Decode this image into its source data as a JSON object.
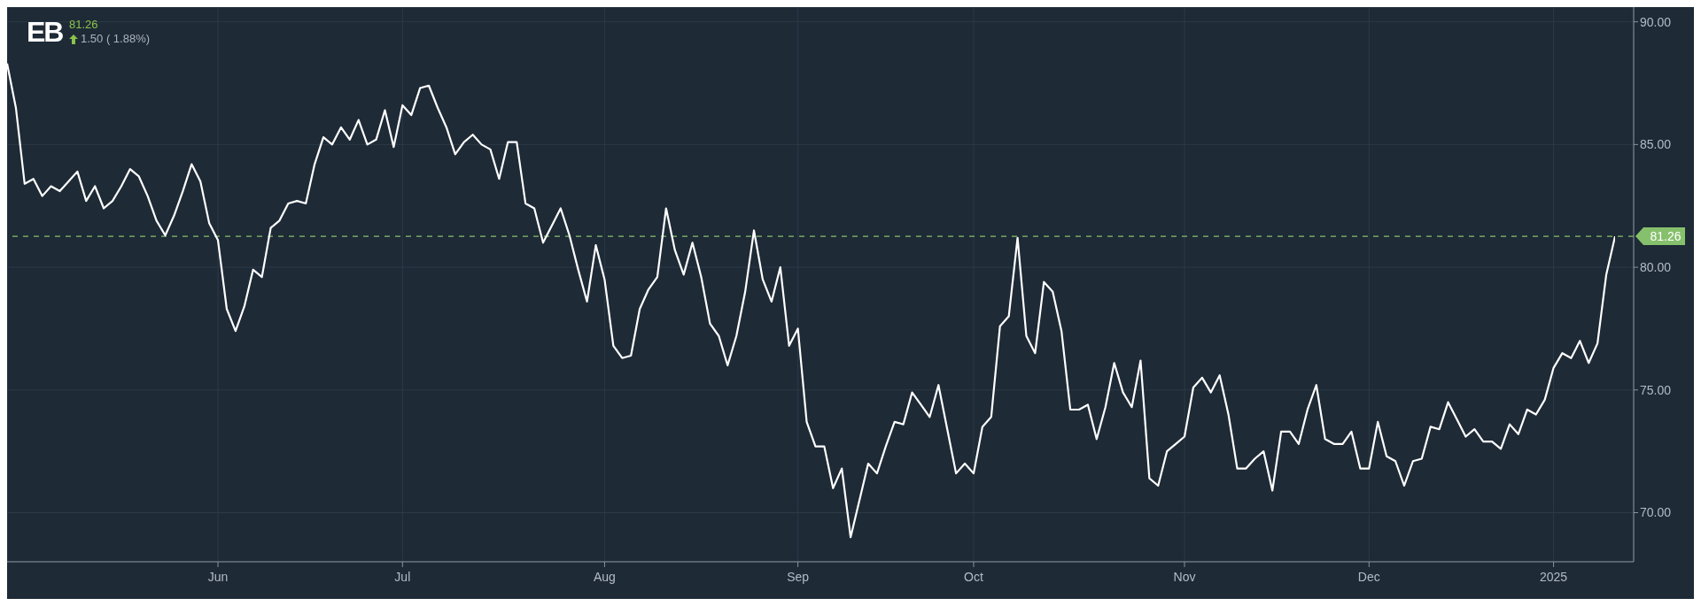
{
  "chart_data": {
    "type": "line",
    "title": "EB",
    "annotations": [
      "81.26",
      "1.50 ( 1.88%)"
    ],
    "categories": [
      null,
      null,
      null,
      null,
      null,
      null,
      null,
      null,
      null,
      null,
      null,
      null,
      null,
      null,
      null,
      null,
      null,
      null,
      null,
      null,
      null,
      null,
      null,
      null,
      "Jun",
      null,
      null,
      null,
      null,
      null,
      null,
      null,
      null,
      null,
      null,
      null,
      null,
      null,
      null,
      null,
      null,
      null,
      null,
      null,
      null,
      "Jul",
      null,
      null,
      null,
      null,
      null,
      null,
      null,
      null,
      null,
      null,
      null,
      null,
      null,
      null,
      null,
      null,
      null,
      null,
      null,
      null,
      null,
      null,
      "Aug",
      null,
      null,
      null,
      null,
      null,
      null,
      null,
      null,
      null,
      null,
      null,
      null,
      null,
      null,
      null,
      null,
      null,
      null,
      null,
      null,
      null,
      "Sep",
      null,
      null,
      null,
      null,
      null,
      null,
      null,
      null,
      null,
      null,
      null,
      null,
      null,
      null,
      null,
      null,
      null,
      null,
      null,
      "Oct",
      null,
      null,
      null,
      null,
      null,
      null,
      null,
      null,
      null,
      null,
      null,
      null,
      null,
      null,
      null,
      null,
      null,
      null,
      null,
      null,
      null,
      null,
      null,
      "Nov",
      null,
      null,
      null,
      null,
      null,
      null,
      null,
      null,
      null,
      null,
      null,
      null,
      null,
      null,
      null,
      null,
      null,
      null,
      null,
      null,
      "Dec",
      null,
      null,
      null,
      null,
      null,
      null,
      null,
      null,
      null,
      null,
      null,
      null,
      null,
      null,
      null,
      null,
      null,
      null,
      null,
      null,
      "2025",
      null,
      null,
      null,
      null,
      null,
      null,
      null
    ],
    "series": [
      {
        "color": "#ffffff",
        "values": [
          88.3,
          86.5,
          83.4,
          83.6,
          82.9,
          83.3,
          83.1,
          83.5,
          83.9,
          82.7,
          83.3,
          82.4,
          82.7,
          83.3,
          84.0,
          83.7,
          82.9,
          81.9,
          81.3,
          82.1,
          83.1,
          84.2,
          83.5,
          81.8,
          81.1,
          78.3,
          77.4,
          78.4,
          79.9,
          79.6,
          81.6,
          81.9,
          82.6,
          82.7,
          82.6,
          84.2,
          85.3,
          85.0,
          85.7,
          85.2,
          86.0,
          85.0,
          85.2,
          86.4,
          84.9,
          86.6,
          86.2,
          87.3,
          87.4,
          86.5,
          85.7,
          84.6,
          85.1,
          85.4,
          85.0,
          84.8,
          83.6,
          85.1,
          85.1,
          82.6,
          82.4,
          81.0,
          81.7,
          82.4,
          81.3,
          79.9,
          78.6,
          80.9,
          79.5,
          76.8,
          76.3,
          76.4,
          78.3,
          79.1,
          79.6,
          82.4,
          80.7,
          79.7,
          81.0,
          79.6,
          77.7,
          77.2,
          76.0,
          77.2,
          79.0,
          81.5,
          79.5,
          78.6,
          80.0,
          76.8,
          77.5,
          73.7,
          72.7,
          72.7,
          71.0,
          71.8,
          69.0,
          70.5,
          72.0,
          71.6,
          72.7,
          73.7,
          73.6,
          74.9,
          74.4,
          73.9,
          75.2,
          73.4,
          71.6,
          72.0,
          71.6,
          73.5,
          73.9,
          77.6,
          78.0,
          81.2,
          77.2,
          76.5,
          79.4,
          79.0,
          77.4,
          74.2,
          74.2,
          74.4,
          73.0,
          74.3,
          76.1,
          74.9,
          74.3,
          76.2,
          71.4,
          71.1,
          72.5,
          72.8,
          73.1,
          75.1,
          75.5,
          74.9,
          75.6,
          74.0,
          71.8,
          71.8,
          72.2,
          72.5,
          70.9,
          73.3,
          73.3,
          72.8,
          74.2,
          75.2,
          73.0,
          72.8,
          72.8,
          73.3,
          71.8,
          71.8,
          73.7,
          72.3,
          72.1,
          71.1,
          72.1,
          72.2,
          73.5,
          73.4,
          74.5,
          73.8,
          73.1,
          73.4,
          72.9,
          72.9,
          72.6,
          73.6,
          73.2,
          74.2,
          74.0,
          74.6,
          75.9,
          76.5,
          76.3,
          77.0,
          76.1,
          76.9,
          79.7,
          81.26
        ]
      }
    ],
    "ylim": [
      68,
      90.6
    ],
    "yticks": [
      {
        "value": 70,
        "label": "70.00"
      },
      {
        "value": 75,
        "label": "75.00"
      },
      {
        "value": 80,
        "label": "80.00"
      },
      {
        "value": 85,
        "label": "85.00"
      },
      {
        "value": 90,
        "label": "90.00"
      }
    ],
    "ref_lines": [
      {
        "axis": "y",
        "value": 81.26,
        "label": "81.26",
        "color": "#86c06c",
        "line_style": "dashed"
      }
    ],
    "grid": true
  }
}
